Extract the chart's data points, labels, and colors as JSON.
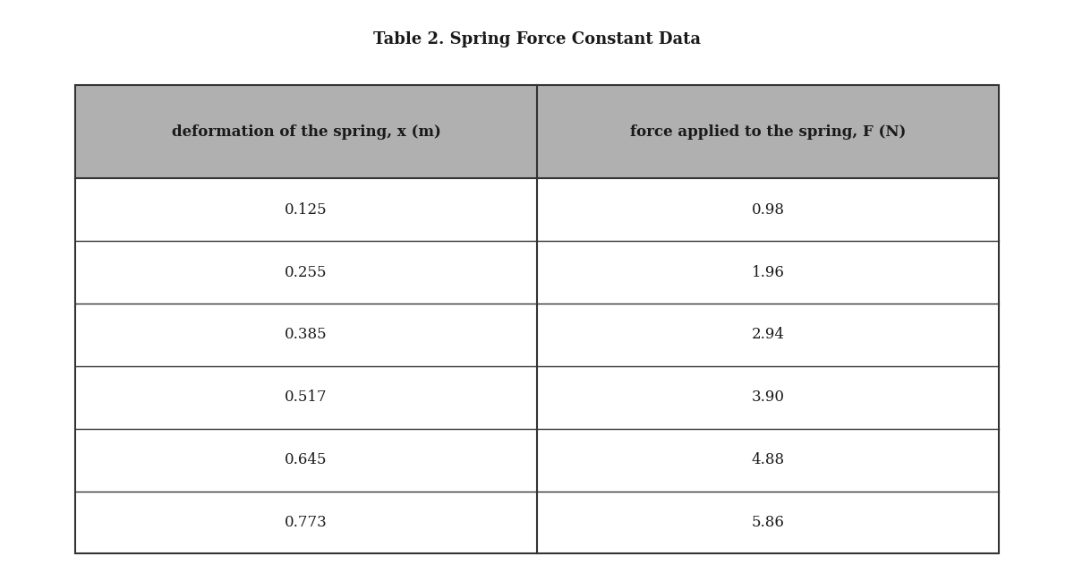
{
  "title": "Table 2. Spring Force Constant Data",
  "col1_header": "deformation of the spring, x (m)",
  "col2_header": "force applied to the spring, F (N)",
  "col1_values": [
    "0.125",
    "0.255",
    "0.385",
    "0.517",
    "0.645",
    "0.773"
  ],
  "col2_values": [
    "0.98",
    "1.96",
    "2.94",
    "3.90",
    "4.88",
    "5.86"
  ],
  "header_bg_color": "#B0B0B0",
  "header_text_color": "#1a1a1a",
  "row_bg_color": "#FFFFFF",
  "border_color": "#333333",
  "title_fontsize": 13,
  "header_fontsize": 12,
  "data_fontsize": 12,
  "bg_color": "#FFFFFF"
}
